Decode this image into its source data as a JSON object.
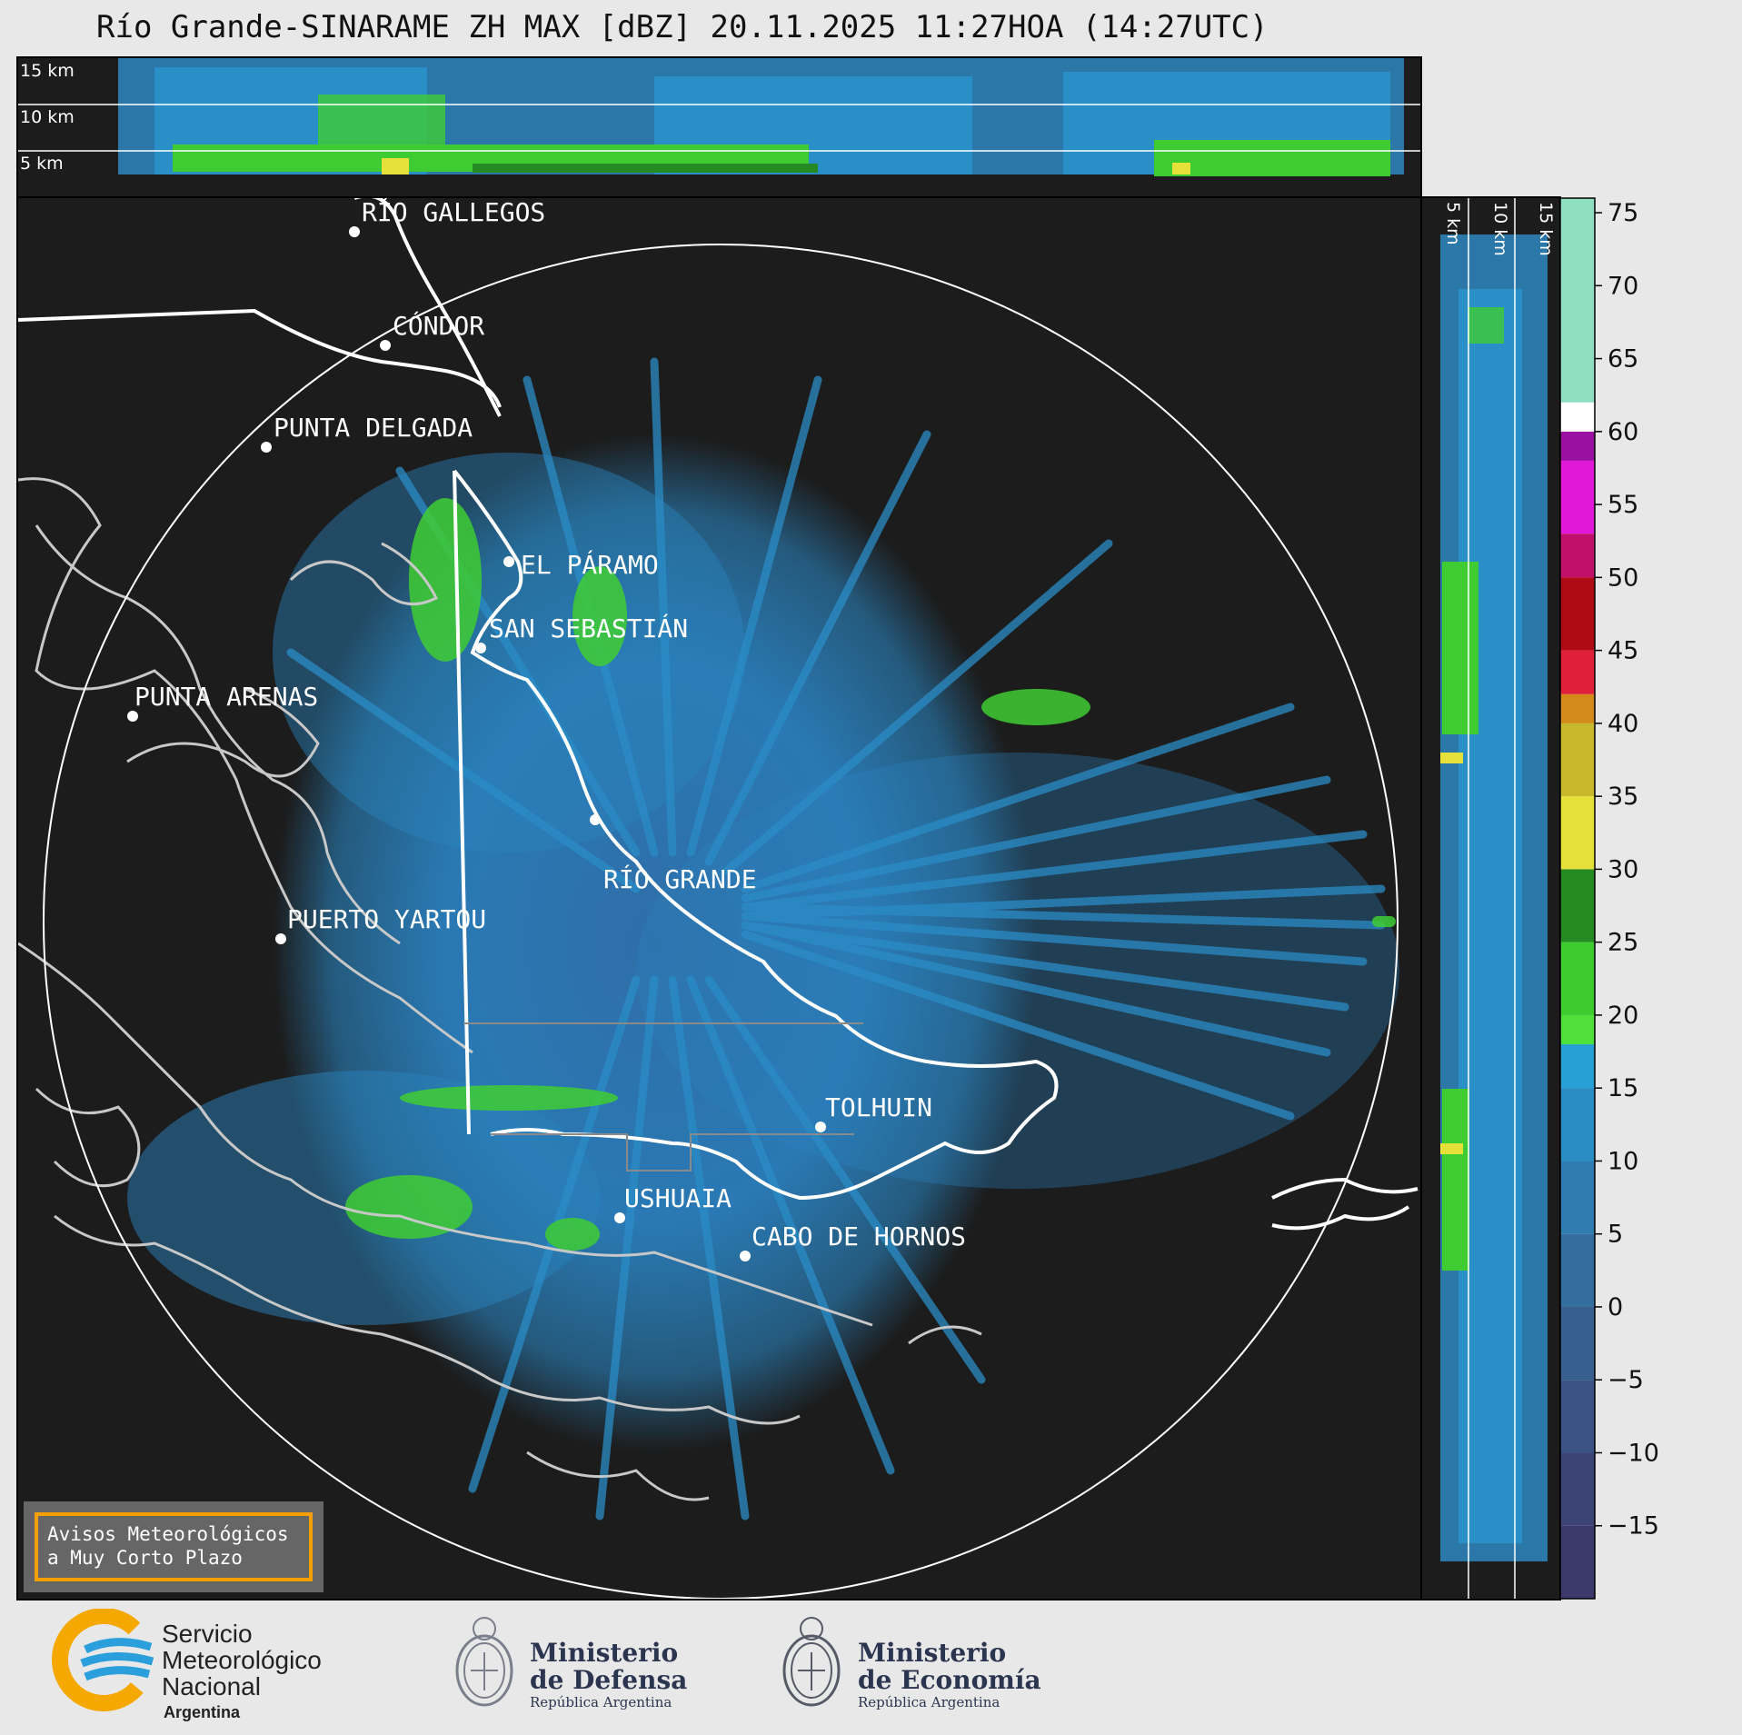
{
  "title": "Río Grande-SINARAME ZH MAX [dBZ] 20.11.2025 11:27HOA (14:27UTC)",
  "height_labels": [
    "15 km",
    "10 km",
    "5 km"
  ],
  "cities": [
    {
      "name": "RÍO GALLEGOS"
    },
    {
      "name": "CÓNDOR"
    },
    {
      "name": "PUNTA DELGADA"
    },
    {
      "name": "EL PÁRAMO"
    },
    {
      "name": "SAN SEBASTIÁN"
    },
    {
      "name": "PUNTA ARENAS"
    },
    {
      "name": "RÍO GRANDE"
    },
    {
      "name": "PUERTO YARTOU"
    },
    {
      "name": "TOLHUIN"
    },
    {
      "name": "USHUAIA"
    },
    {
      "name": "CABO DE HORNOS"
    }
  ],
  "colorbar": {
    "unit": "dBZ",
    "min": -20,
    "max": 76,
    "ticks": [
      "75",
      "70",
      "65",
      "60",
      "55",
      "50",
      "45",
      "40",
      "35",
      "30",
      "25",
      "20",
      "15",
      "10",
      "5",
      "0",
      "−5",
      "−10",
      "−15"
    ],
    "tick_values": [
      75,
      70,
      65,
      60,
      55,
      50,
      45,
      40,
      35,
      30,
      25,
      20,
      15,
      10,
      5,
      0,
      -5,
      -10,
      -15
    ],
    "bands": [
      {
        "from": -20,
        "to": -15,
        "color": "#3b3a6a"
      },
      {
        "from": -15,
        "to": -10,
        "color": "#3c4476"
      },
      {
        "from": -10,
        "to": -5,
        "color": "#3a5384"
      },
      {
        "from": -5,
        "to": 0,
        "color": "#376090"
      },
      {
        "from": 0,
        "to": 5,
        "color": "#336e9e"
      },
      {
        "from": 5,
        "to": 10,
        "color": "#2f7db0"
      },
      {
        "from": 10,
        "to": 15,
        "color": "#298cc2"
      },
      {
        "from": 15,
        "to": 18,
        "color": "#27a0d6"
      },
      {
        "from": 18,
        "to": 20,
        "color": "#4fe03a"
      },
      {
        "from": 20,
        "to": 25,
        "color": "#3ccc30"
      },
      {
        "from": 25,
        "to": 30,
        "color": "#268a22"
      },
      {
        "from": 30,
        "to": 35,
        "color": "#e6e03a"
      },
      {
        "from": 35,
        "to": 40,
        "color": "#c8b82c"
      },
      {
        "from": 40,
        "to": 42,
        "color": "#d28a1a"
      },
      {
        "from": 42,
        "to": 45,
        "color": "#e0203a"
      },
      {
        "from": 45,
        "to": 50,
        "color": "#b00a14"
      },
      {
        "from": 50,
        "to": 53,
        "color": "#c0106a"
      },
      {
        "from": 53,
        "to": 58,
        "color": "#e018d8"
      },
      {
        "from": 58,
        "to": 60,
        "color": "#9a10a0"
      },
      {
        "from": 60,
        "to": 62,
        "color": "#ffffff"
      },
      {
        "from": 62,
        "to": 76,
        "color": "#8ee0c0"
      }
    ]
  },
  "warning_box": {
    "line1": "Avisos Meteorológicos",
    "line2": "a Muy Corto Plazo"
  },
  "logos": {
    "smn": {
      "line1": "Servicio",
      "line2": "Meteorológico",
      "line3": "Nacional",
      "line4": "Argentina"
    },
    "defensa": {
      "line1": "Ministerio",
      "line2": "de Defensa",
      "line3": "República Argentina"
    },
    "economia": {
      "line1": "Ministerio",
      "line2": "de Economía",
      "line3": "República Argentina"
    }
  },
  "colors": {
    "background": "#1c1c1c",
    "page": "#e8e8e8",
    "accent": "#f5a000"
  }
}
